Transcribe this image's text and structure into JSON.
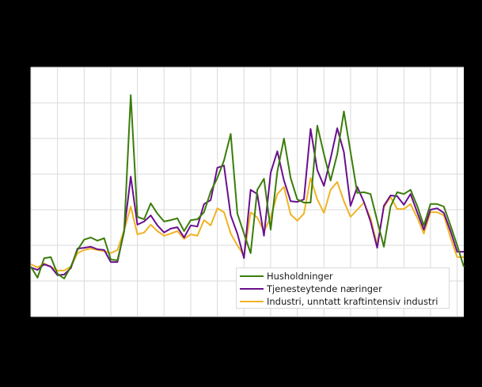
{
  "colors": {
    "background": "#000000",
    "plot_background": "#ffffff",
    "grid": "#d9d9d9"
  },
  "chart_data": {
    "type": "line",
    "title": "",
    "xlabel": "",
    "ylabel": "",
    "notes": "Axis tick labels are not visible in the screenshot (rendered dark on dark). Values are expressed in gridline units: 0 = bottom of plot, each horizontal gridline = 1 unit.",
    "ylim": [
      0,
      7
    ],
    "y_gridlines": [
      0,
      1,
      2,
      3,
      4,
      5,
      6,
      7
    ],
    "x_gridline_count": 17,
    "points_per_x_gridline": 4,
    "grid": true,
    "legend_position": "lower-right inside plot",
    "x": [
      0,
      1,
      2,
      3,
      4,
      5,
      6,
      7,
      8,
      9,
      10,
      11,
      12,
      13,
      14,
      15,
      16,
      17,
      18,
      19,
      20,
      21,
      22,
      23,
      24,
      25,
      26,
      27,
      28,
      29,
      30,
      31,
      32,
      33,
      34,
      35,
      36,
      37,
      38,
      39,
      40,
      41,
      42,
      43,
      44,
      45,
      46,
      47,
      48,
      49,
      50,
      51,
      52,
      53,
      54,
      55,
      56,
      57,
      58,
      59,
      60,
      61,
      62,
      63,
      64,
      65
    ],
    "series": [
      {
        "name": "Husholdninger",
        "color": "#3a7d0a",
        "values": [
          1.4,
          1.09,
          1.64,
          1.67,
          1.2,
          1.07,
          1.4,
          1.87,
          2.16,
          2.22,
          2.13,
          2.2,
          1.6,
          1.58,
          2.38,
          6.22,
          2.8,
          2.73,
          3.18,
          2.89,
          2.67,
          2.71,
          2.76,
          2.4,
          2.71,
          2.73,
          2.93,
          3.51,
          3.89,
          4.38,
          5.13,
          2.89,
          2.33,
          1.78,
          3.56,
          3.87,
          2.44,
          4.07,
          5.0,
          3.89,
          3.29,
          3.2,
          3.2,
          5.36,
          4.56,
          3.82,
          4.56,
          5.76,
          4.62,
          3.47,
          3.49,
          3.44,
          2.69,
          1.96,
          3.09,
          3.49,
          3.44,
          3.56,
          3.11,
          2.56,
          3.16,
          3.16,
          3.09,
          2.56,
          2.0,
          1.4
        ]
      },
      {
        "name": "Tjenesteytende næringer",
        "color": "#6a0f8e",
        "values": [
          1.38,
          1.31,
          1.47,
          1.4,
          1.16,
          1.18,
          1.36,
          1.91,
          1.93,
          1.96,
          1.89,
          1.87,
          1.53,
          1.53,
          2.4,
          3.93,
          2.58,
          2.67,
          2.84,
          2.56,
          2.36,
          2.47,
          2.51,
          2.22,
          2.56,
          2.53,
          3.16,
          3.27,
          4.18,
          4.24,
          2.84,
          2.33,
          1.64,
          3.56,
          3.44,
          2.27,
          4.04,
          4.64,
          3.82,
          3.24,
          3.22,
          3.29,
          5.27,
          4.11,
          3.67,
          4.44,
          5.29,
          4.62,
          3.11,
          3.64,
          3.22,
          2.67,
          1.93,
          3.11,
          3.4,
          3.38,
          3.14,
          3.44,
          2.93,
          2.44,
          3.0,
          3.04,
          2.91,
          2.4,
          1.82,
          1.82
        ]
      },
      {
        "name": "Industri, unntatt kraftintensiv industri",
        "color": "#f0b323",
        "values": [
          1.47,
          1.38,
          1.49,
          1.4,
          1.29,
          1.29,
          1.4,
          1.78,
          1.87,
          1.91,
          1.87,
          1.84,
          1.78,
          1.87,
          2.42,
          3.09,
          2.31,
          2.36,
          2.58,
          2.4,
          2.27,
          2.33,
          2.4,
          2.18,
          2.31,
          2.27,
          2.71,
          2.56,
          3.04,
          2.93,
          2.33,
          2.0,
          1.71,
          2.93,
          2.78,
          2.4,
          2.78,
          3.44,
          3.64,
          2.87,
          2.69,
          2.89,
          3.89,
          3.29,
          2.91,
          3.56,
          3.78,
          3.24,
          2.8,
          3.0,
          3.2,
          2.76,
          2.0,
          3.07,
          3.36,
          3.02,
          3.02,
          3.16,
          2.78,
          2.33,
          2.93,
          2.93,
          2.84,
          2.22,
          1.67,
          1.67
        ]
      }
    ]
  },
  "legend": {
    "items": [
      {
        "label": "Husholdninger",
        "color": "#3a7d0a"
      },
      {
        "label": "Tjenesteytende næringer",
        "color": "#6a0f8e"
      },
      {
        "label": "Industri, unntatt kraftintensiv industri",
        "color": "#f0b323"
      }
    ]
  }
}
